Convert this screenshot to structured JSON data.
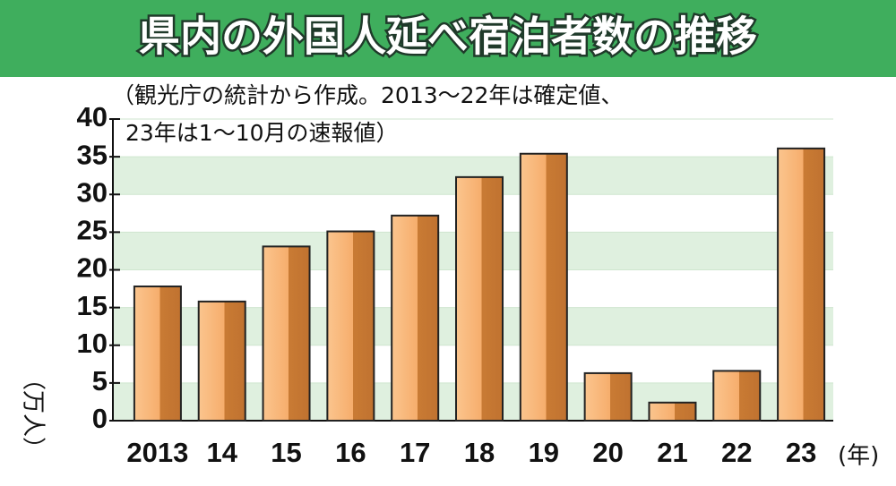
{
  "chart_data": {
    "type": "bar",
    "title": "県内の外国人延べ宿泊者数の推移",
    "subtitle": [
      "（観光庁の統計から作成。2013～22年は確定値、",
      "23年は1～10月の速報値）"
    ],
    "y_label": "（万人）",
    "x_label": "(年)",
    "categories": [
      "2013",
      "14",
      "15",
      "16",
      "17",
      "18",
      "19",
      "20",
      "21",
      "22",
      "23"
    ],
    "values": [
      17.8,
      15.8,
      23.1,
      25.1,
      27.2,
      32.3,
      35.4,
      6.3,
      2.4,
      6.6,
      36.1
    ],
    "color": "#f7b070",
    "ylim": [
      0,
      40
    ],
    "yticks": [
      0,
      5,
      10,
      15,
      20,
      25,
      30,
      35,
      40
    ],
    "grid": true
  }
}
